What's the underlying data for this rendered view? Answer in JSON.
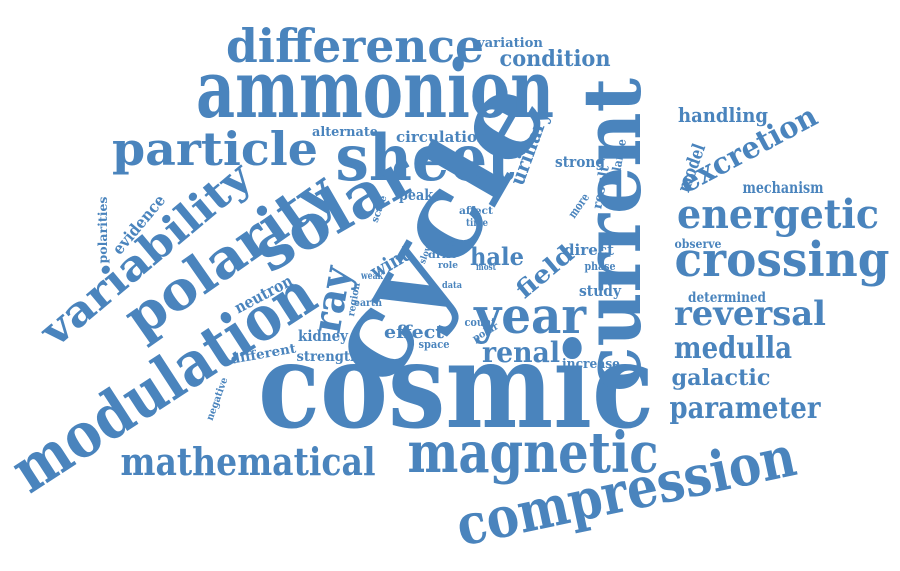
{
  "style": {
    "word_color": "#4a84bd",
    "background": "#ffffff"
  },
  "words": [
    {
      "text": "cosmic"
    },
    {
      "text": "cycle"
    },
    {
      "text": "current"
    },
    {
      "text": "ammonion"
    },
    {
      "text": "sheet"
    },
    {
      "text": "solar"
    },
    {
      "text": "modulation"
    },
    {
      "text": "polarity"
    },
    {
      "text": "compression"
    },
    {
      "text": "magnetic"
    },
    {
      "text": "variability"
    },
    {
      "text": "difference"
    },
    {
      "text": "particle"
    },
    {
      "text": "crossing"
    },
    {
      "text": "energetic"
    },
    {
      "text": "mathematical"
    },
    {
      "text": "year"
    },
    {
      "text": "reversal"
    },
    {
      "text": "parameter"
    },
    {
      "text": "medulla"
    },
    {
      "text": "ray"
    },
    {
      "text": "excretion"
    },
    {
      "text": "renal"
    },
    {
      "text": "field"
    },
    {
      "text": "hale"
    },
    {
      "text": "wind"
    },
    {
      "text": "condition"
    },
    {
      "text": "handling"
    },
    {
      "text": "galactic"
    },
    {
      "text": "urinary"
    },
    {
      "text": "model"
    },
    {
      "text": "mechanism"
    },
    {
      "text": "determined"
    },
    {
      "text": "effect"
    },
    {
      "text": "evidence"
    },
    {
      "text": "neutron"
    },
    {
      "text": "kidney"
    },
    {
      "text": "strength"
    },
    {
      "text": "different"
    },
    {
      "text": "increase"
    },
    {
      "text": "circulation"
    },
    {
      "text": "alternate"
    },
    {
      "text": "strong"
    },
    {
      "text": "peak"
    },
    {
      "text": "direct"
    },
    {
      "text": "study"
    },
    {
      "text": "observe"
    },
    {
      "text": "variation"
    },
    {
      "text": "polarities"
    },
    {
      "text": "negative"
    },
    {
      "text": "result"
    },
    {
      "text": "balance"
    },
    {
      "text": "more"
    },
    {
      "text": "scale"
    },
    {
      "text": "affect"
    },
    {
      "text": "time"
    },
    {
      "text": "phase"
    },
    {
      "text": "space"
    },
    {
      "text": "count"
    },
    {
      "text": "polar"
    },
    {
      "text": "weak"
    },
    {
      "text": "drift"
    },
    {
      "text": "slow"
    },
    {
      "text": "vein"
    },
    {
      "text": "region"
    },
    {
      "text": "earth"
    },
    {
      "text": "role"
    },
    {
      "text": "data"
    },
    {
      "text": "most"
    }
  ]
}
